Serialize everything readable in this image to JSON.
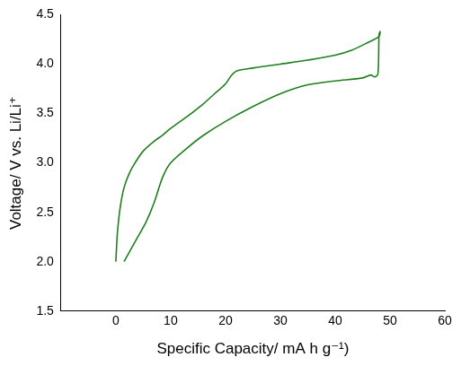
{
  "chart_data": {
    "type": "line",
    "x_label": "Specific Capacity/ mA h g⁻¹)",
    "y_label": "Voltage/ V vs. Li/Li⁺",
    "x": [
      0,
      0.3,
      0.8,
      1.5,
      2.5,
      3.5,
      5,
      7,
      8.5,
      10,
      13,
      16,
      18,
      20,
      21,
      22,
      25,
      30,
      35,
      40,
      43,
      46,
      48,
      48.2,
      48,
      47.8,
      47.2,
      46.5,
      45,
      40,
      35,
      30,
      25,
      20,
      16,
      13,
      10,
      8.5,
      7,
      5.5,
      4,
      2.5,
      1.5
    ],
    "values": [
      2.0,
      2.3,
      2.55,
      2.75,
      2.9,
      3.0,
      3.12,
      3.22,
      3.28,
      3.35,
      3.47,
      3.6,
      3.7,
      3.8,
      3.88,
      3.93,
      3.96,
      4.0,
      4.04,
      4.09,
      4.14,
      4.22,
      4.28,
      4.33,
      4.3,
      3.9,
      3.87,
      3.89,
      3.86,
      3.83,
      3.79,
      3.7,
      3.57,
      3.42,
      3.28,
      3.15,
      3.0,
      2.85,
      2.6,
      2.4,
      2.25,
      2.1,
      2.0
    ],
    "color": "#1f7f1f",
    "xlim": [
      -10,
      60
    ],
    "xticks": [
      0,
      10,
      20,
      30,
      40,
      50,
      60
    ],
    "ylim": [
      1.5,
      4.5
    ],
    "yticks": [
      1.5,
      {
        "value": 2,
        "label": "2.0"
      },
      2.5,
      {
        "value": 3,
        "label": "3.0"
      },
      3.5,
      {
        "value": 4,
        "label": "4.0"
      },
      4.5
    ],
    "grid": false
  }
}
